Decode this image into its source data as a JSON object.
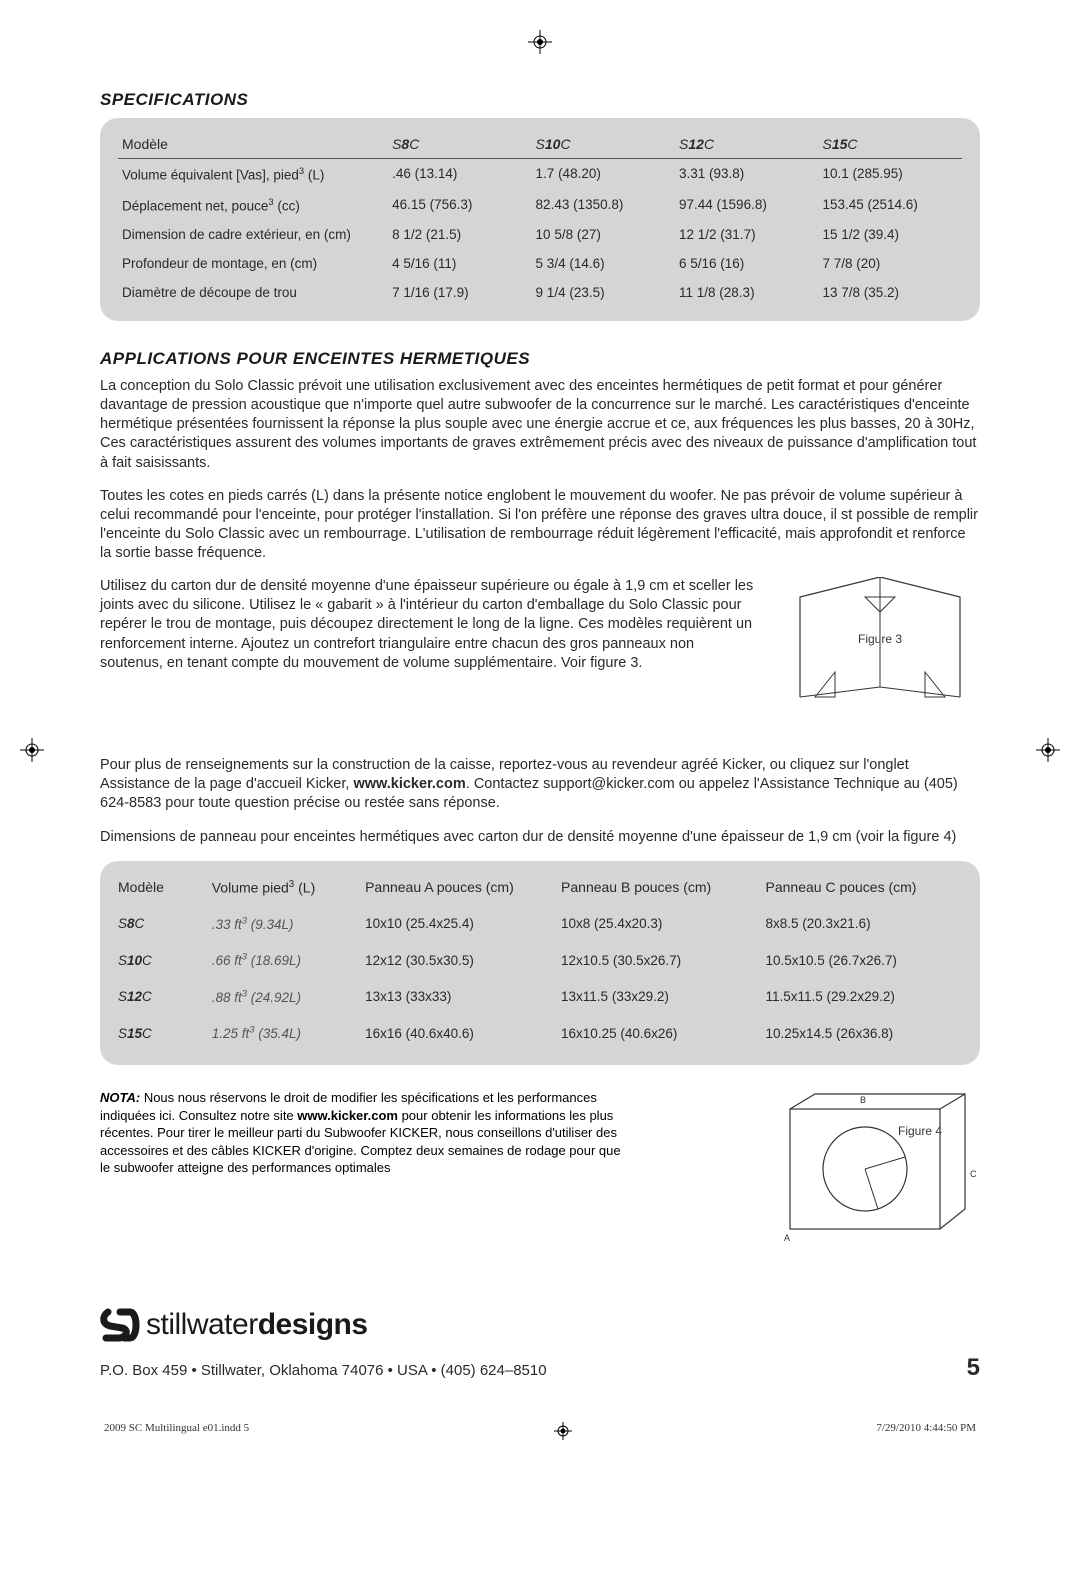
{
  "headings": {
    "specifications": "SPECIFICATIONS",
    "applications": "APPLICATIONS POUR ENCEINTES HERMETIQUES"
  },
  "specTable": {
    "header": {
      "label": "Modèle",
      "models": [
        {
          "prefix": "S",
          "mid": "8",
          "suffix": "C"
        },
        {
          "prefix": "S",
          "mid": "10",
          "suffix": "C"
        },
        {
          "prefix": "S",
          "mid": "12",
          "suffix": "C"
        },
        {
          "prefix": "S",
          "mid": "15",
          "suffix": "C"
        }
      ]
    },
    "rows": [
      {
        "label": "Volume équivalent [Vas], pied",
        "sup": "3",
        "tail": " (L)",
        "vals": [
          ".46 (13.14)",
          "1.7 (48.20)",
          "3.31 (93.8)",
          "10.1 (285.95)"
        ]
      },
      {
        "label": "Déplacement net, pouce",
        "sup": "3",
        "tail": " (cc)",
        "vals": [
          "46.15 (756.3)",
          "82.43 (1350.8)",
          "97.44 (1596.8)",
          "153.45 (2514.6)"
        ]
      },
      {
        "label": "Dimension de cadre extérieur, en (cm)",
        "sup": "",
        "tail": "",
        "vals": [
          "8 1/2 (21.5)",
          "10 5/8 (27)",
          "12 1/2 (31.7)",
          "15 1/2 (39.4)"
        ]
      },
      {
        "label": "Profondeur de montage, en (cm)",
        "sup": "",
        "tail": "",
        "vals": [
          "4 5/16 (11)",
          "5 3/4 (14.6)",
          "6 5/16 (16)",
          "7 7/8 (20)"
        ]
      },
      {
        "label": "Diamètre de découpe de trou",
        "sup": "",
        "tail": "",
        "vals": [
          "7 1/16 (17.9)",
          "9 1/4 (23.5)",
          "11 1/8 (28.3)",
          "13 7/8 (35.2)"
        ]
      }
    ]
  },
  "paragraphs": {
    "p1": "La conception du Solo Classic prévoit une utilisation exclusivement avec des enceintes hermétiques de petit format et pour générer davantage de pression acoustique que n'importe quel autre subwoofer de la concurrence sur le marché. Les caractéristiques d'enceinte hermétique présentées fournissent la réponse la plus souple avec une énergie accrue et ce, aux fréquences les plus basses, 20 à 30Hz, Ces caractéristiques assurent des volumes importants de graves extrêmement précis avec des niveaux de puissance d'amplification tout à fait saisissants.",
    "p2": "Toutes les cotes en pieds carrés (L) dans la présente notice englobent le mouvement du woofer. Ne pas prévoir de volume supérieur à celui recommandé pour l'enceinte, pour protéger l'installation. Si l'on préfère une réponse des graves ultra douce, il st possible de remplir l'enceinte du Solo Classic avec un rembourrage. L'utilisation de rembourrage réduit légèrement l'efficacité, mais approfondit et renforce la sortie basse fréquence.",
    "p3": "Utilisez du carton dur de densité moyenne d'une épaisseur supérieure ou égale à 1,9 cm et sceller les joints avec du silicone. Utilisez le « gabarit » à l'intérieur du carton d'emballage du Solo Classic pour repérer le trou de montage, puis découpez directement le long de la ligne. Ces modèles requièrent un renforcement interne. Ajoutez un contrefort triangulaire entre chacun des gros panneaux non soutenus, en tenant compte du mouvement de volume supplémentaire. Voir figure 3.",
    "p4a": "Pour plus de renseignements sur la construction de la caisse, reportez-vous au revendeur agréé Kicker, ou cliquez sur l'onglet Assistance de la page d'accueil Kicker, ",
    "p4_link": "www.kicker.com",
    "p4b": ". Contactez support@kicker.com ou appelez l'Assistance Technique au (405) 624-8583 pour toute question précise ou restée sans réponse.",
    "p5": "Dimensions de panneau pour enceintes hermétiques avec carton dur de densité moyenne d'une épaisseur de 1,9 cm (voir la figure 4)"
  },
  "panelTable": {
    "headers": [
      "Modèle",
      "Volume pied³ (L)",
      "Panneau A pouces (cm)",
      "Panneau B pouces (cm)",
      "Panneau C pouces (cm)"
    ],
    "rows": [
      {
        "model": {
          "prefix": "S",
          "mid": "8",
          "suffix": "C"
        },
        "vol_ft": ".33",
        "vol_l": "(9.34L)",
        "a": "10x10 (25.4x25.4)",
        "b": "10x8 (25.4x20.3)",
        "c": "8x8.5 (20.3x21.6)"
      },
      {
        "model": {
          "prefix": "S",
          "mid": "10",
          "suffix": "C"
        },
        "vol_ft": ".66",
        "vol_l": "(18.69L)",
        "a": "12x12 (30.5x30.5)",
        "b": "12x10.5 (30.5x26.7)",
        "c": "10.5x10.5 (26.7x26.7)"
      },
      {
        "model": {
          "prefix": "S",
          "mid": "12",
          "suffix": "C"
        },
        "vol_ft": ".88",
        "vol_l": "(24.92L)",
        "a": "13x13 (33x33)",
        "b": "13x11.5 (33x29.2)",
        "c": "11.5x11.5 (29.2x29.2)"
      },
      {
        "model": {
          "prefix": "S",
          "mid": "15",
          "suffix": "C"
        },
        "vol_ft": "1.25",
        "vol_l": "(35.4L)",
        "a": "16x16 (40.6x40.6)",
        "b": "16x10.25 (40.6x26)",
        "c": "10.25x14.5 (26x36.8)"
      }
    ]
  },
  "nota": {
    "label": "NOTA:",
    "text_a": " Nous nous réservons le droit de modifier les spécifications et les performances indiquées ici. Consultez notre site ",
    "link": "www.kicker.com",
    "text_b": " pour obtenir les informations les plus récentes. Pour tirer le meilleur parti du Subwoofer KICKER, nous conseillons d'utiliser des accessoires et des câbles KICKER d'origine. Comptez deux semaines de rodage pour que le subwoofer atteigne des performances optimales"
  },
  "figures": {
    "fig3_label": "Figure 3",
    "fig4_label": "Figure 4",
    "fig4_a": "A",
    "fig4_b": "B",
    "fig4_c": "C"
  },
  "logo": {
    "sw": "stillwater",
    "ds": "designs"
  },
  "footer": {
    "address": "P.O. Box 459 • Stillwater, Oklahoma 74076 • USA • (405) 624–8510",
    "page": "5"
  },
  "printFooter": {
    "left": "2009 SC Multilingual e01.indd   5",
    "right": "7/29/2010   4:44:50 PM"
  }
}
